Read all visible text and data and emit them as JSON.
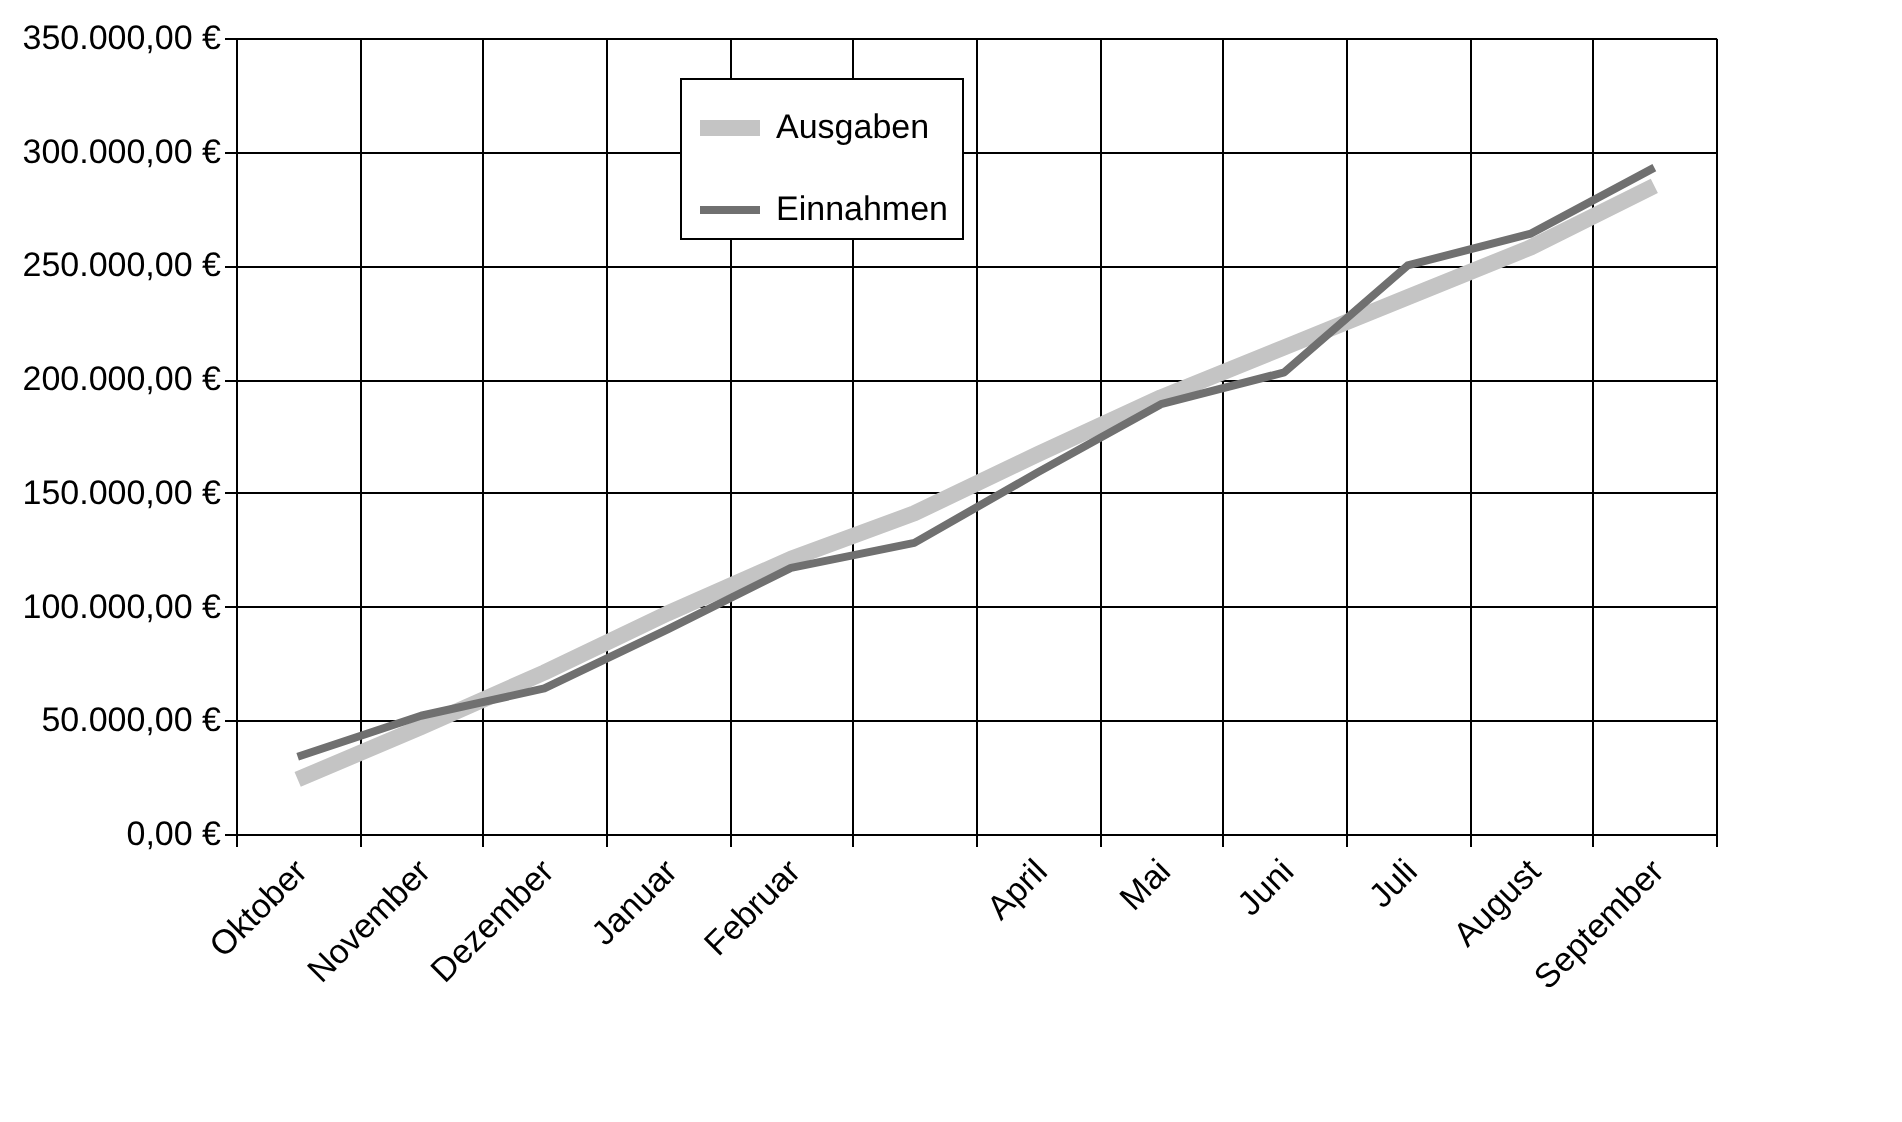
{
  "chart_data": {
    "type": "line",
    "categories": [
      "Oktober",
      "November",
      "Dezember",
      "Januar",
      "Februar",
      null,
      "April",
      "Mai",
      "Juni",
      "Juli",
      "August",
      "September"
    ],
    "series": [
      {
        "name": "Ausgaben",
        "color": "#c4c4c4",
        "values": [
          24000,
          47000,
          71000,
          97000,
          121000,
          141000,
          167000,
          192000,
          214000,
          236000,
          258000,
          285000
        ]
      },
      {
        "name": "Einnahmen",
        "color": "#707070",
        "values": [
          34000,
          52000,
          64000,
          90000,
          117000,
          128000,
          159000,
          189000,
          203000,
          250000,
          264000,
          293000
        ]
      }
    ],
    "ylim": [
      0,
      350000
    ],
    "yticks": [
      {
        "value": 0,
        "label": "0,00 €"
      },
      {
        "value": 50000,
        "label": "50.000,00 €"
      },
      {
        "value": 100000,
        "label": "100.000,00 €"
      },
      {
        "value": 150000,
        "label": "150.000,00 €"
      },
      {
        "value": 200000,
        "label": "200.000,00 €"
      },
      {
        "value": 250000,
        "label": "250.000,00 €"
      },
      {
        "value": 300000,
        "label": "300.000,00 €"
      },
      {
        "value": 350000,
        "label": "350.000,00 €"
      }
    ],
    "grid": true,
    "legend": "top",
    "marker": "none",
    "line_style": "solid"
  }
}
